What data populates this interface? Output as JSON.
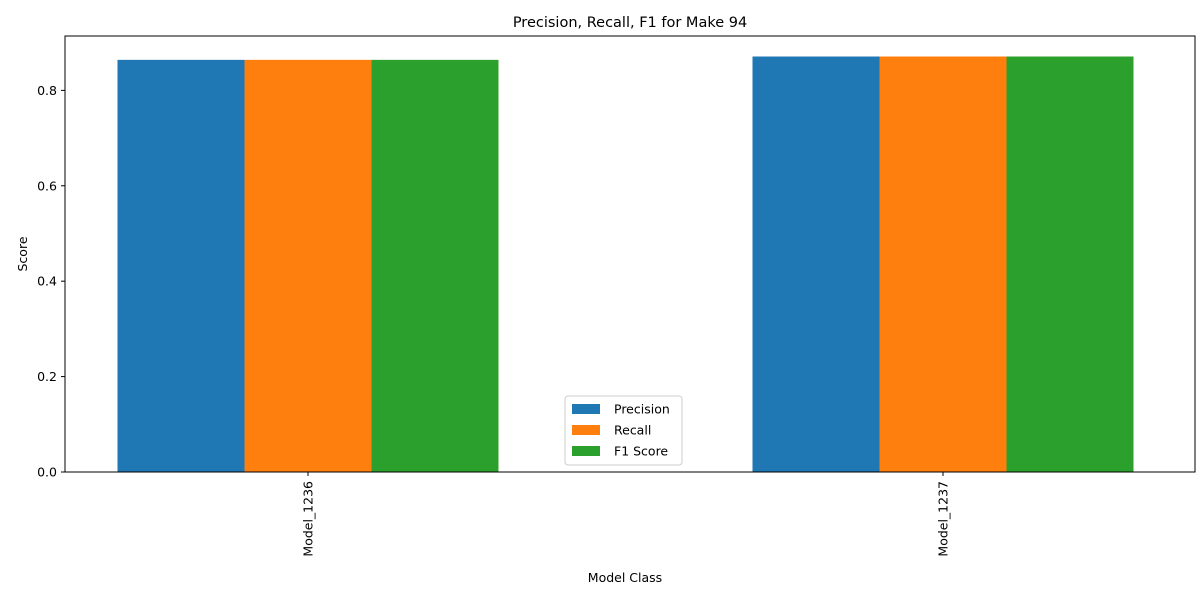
{
  "chart_data": {
    "type": "bar",
    "title": "Precision, Recall, F1 for Make 94",
    "xlabel": "Model Class",
    "ylabel": "Score",
    "categories": [
      "Model_1236",
      "Model_1237"
    ],
    "series": [
      {
        "name": "Precision",
        "color": "#1f77b4",
        "values": [
          0.864,
          0.871
        ]
      },
      {
        "name": "Recall",
        "color": "#ff7f0e",
        "values": [
          0.864,
          0.871
        ]
      },
      {
        "name": "F1 Score",
        "color": "#2ca02c",
        "values": [
          0.864,
          0.871
        ]
      }
    ],
    "ylim": [
      0,
      0.914
    ],
    "yticks": [
      "0.0",
      "0.2",
      "0.4",
      "0.6",
      "0.8"
    ],
    "legend_position": "bottom-center",
    "grid": false
  }
}
